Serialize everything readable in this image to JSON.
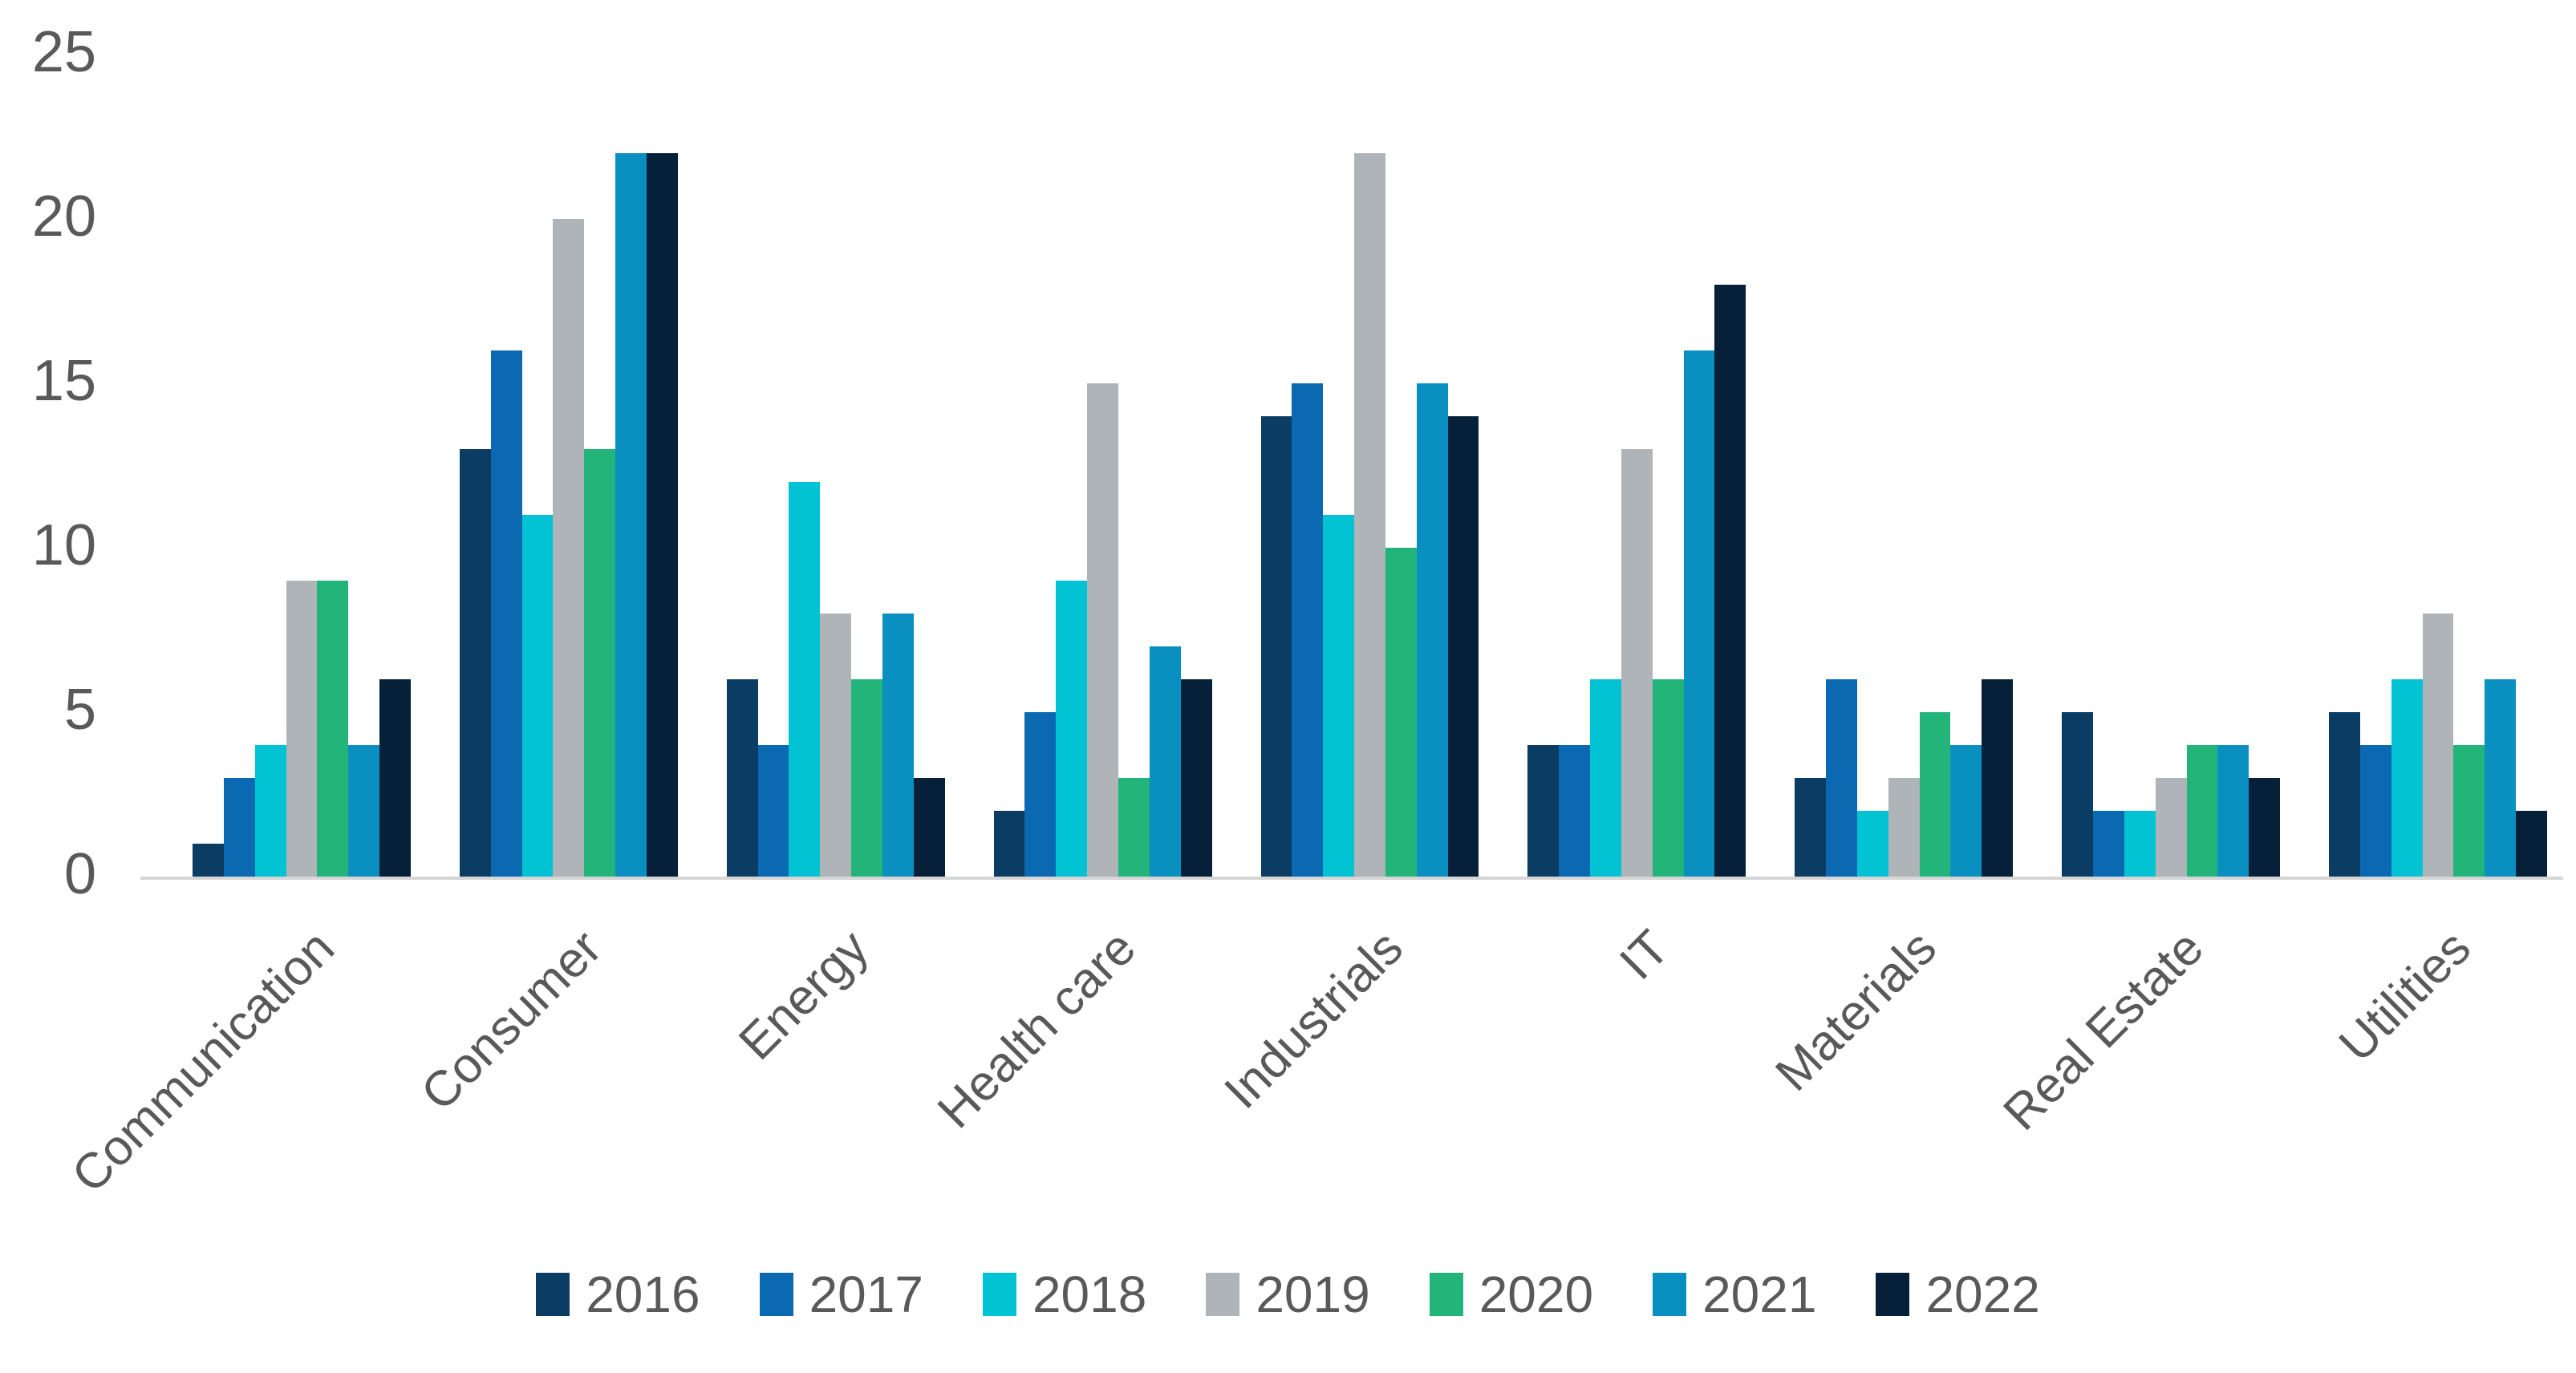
{
  "chart_data": {
    "type": "bar",
    "title": "",
    "xlabel": "",
    "ylabel": "",
    "categories": [
      "Communication",
      "Consumer",
      "Energy",
      "Health care",
      "Industrials",
      "IT",
      "Materials",
      "Real Estate",
      "Utilities"
    ],
    "series": [
      {
        "name": "2016",
        "color": "#0b3c64",
        "values": [
          1,
          13,
          6,
          2,
          14,
          4,
          3,
          5,
          5
        ]
      },
      {
        "name": "2017",
        "color": "#0a69b1",
        "values": [
          3,
          16,
          4,
          5,
          15,
          4,
          6,
          2,
          4
        ]
      },
      {
        "name": "2018",
        "color": "#02c3d4",
        "values": [
          4,
          11,
          12,
          9,
          11,
          6,
          2,
          2,
          6
        ]
      },
      {
        "name": "2019",
        "color": "#aeb4b7",
        "values": [
          9,
          20,
          8,
          15,
          22,
          13,
          3,
          3,
          8
        ]
      },
      {
        "name": "2020",
        "color": "#22b478",
        "values": [
          9,
          13,
          6,
          3,
          10,
          6,
          5,
          4,
          4
        ]
      },
      {
        "name": "2021",
        "color": "#0a90c0",
        "values": [
          4,
          22,
          8,
          7,
          15,
          16,
          4,
          4,
          6
        ]
      },
      {
        "name": "2022",
        "color": "#06203a",
        "values": [
          6,
          22,
          3,
          6,
          14,
          18,
          6,
          3,
          2
        ]
      }
    ],
    "y_axis": {
      "ticks": [
        0,
        5,
        10,
        15,
        20,
        25
      ],
      "min": 0,
      "max": 25
    },
    "legend_position": "bottom",
    "grid": "off"
  },
  "colors": {
    "axis_line": "#d6d6d6",
    "label_text": "#595959",
    "background": "#ffffff"
  }
}
